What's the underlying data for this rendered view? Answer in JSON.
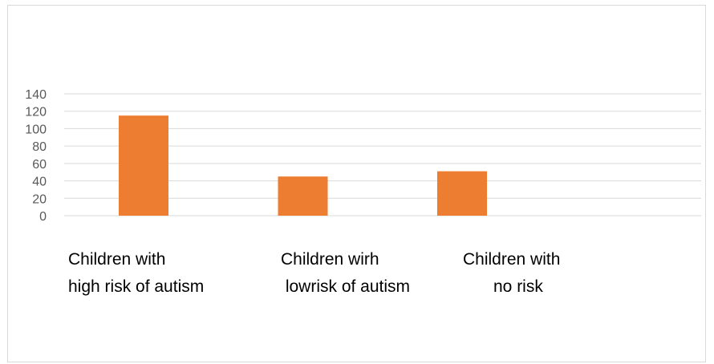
{
  "chart_data": {
    "type": "bar",
    "categories": [
      [
        "Children with",
        "high risk of autism"
      ],
      [
        "Children wirh",
        " lowrisk of autism"
      ],
      [
        "Children with",
        "no risk"
      ]
    ],
    "values": [
      115,
      45,
      51
    ],
    "ylim": [
      0,
      140
    ],
    "yticks": [
      "0",
      "20",
      "40",
      "60",
      "80",
      "100",
      "120",
      "140"
    ],
    "title": "",
    "xlabel": "",
    "ylabel": "",
    "grid": true,
    "legend": "none",
    "bar_color": "#ED7D31",
    "grid_color": "#d9d9d9"
  }
}
